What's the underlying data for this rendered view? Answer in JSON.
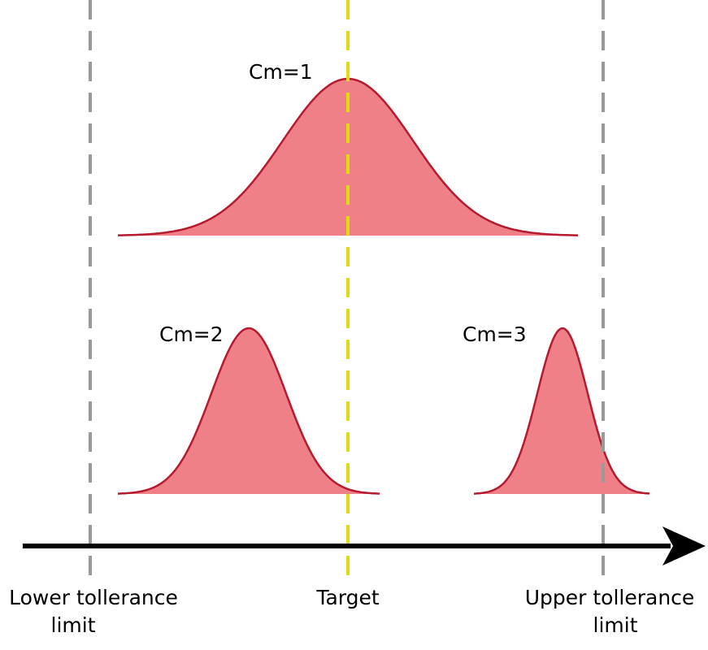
{
  "curves": [
    {
      "label": "Cm=1"
    },
    {
      "label": "Cm=2"
    },
    {
      "label": "Cm=3"
    }
  ],
  "limits": {
    "lower": [
      "Lower tollerance",
      "limit"
    ],
    "target": "Target",
    "upper": [
      "Upper tollerance",
      "limit"
    ]
  }
}
